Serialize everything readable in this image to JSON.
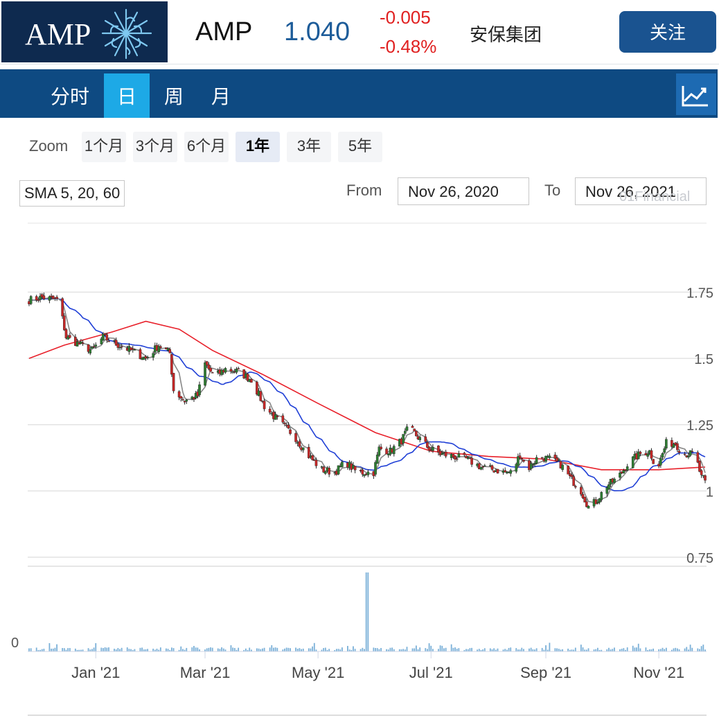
{
  "header": {
    "logo_text": "AMP",
    "ticker": "AMP",
    "price": "1.040",
    "change": "-0.005",
    "change_pct": "-0.48%",
    "company_name": "安保集团",
    "follow_label": "关注",
    "colors": {
      "logo_bg": "#0e2a4f",
      "price": "#1d5c99",
      "down": "#e02020",
      "button": "#1a5390"
    }
  },
  "tabs": [
    {
      "label": "分时",
      "active": false
    },
    {
      "label": "日",
      "active": true
    },
    {
      "label": "周",
      "active": false
    },
    {
      "label": "月",
      "active": false
    }
  ],
  "toolbar": {
    "chart_toggle_icon": "line-chart-icon",
    "zoom_label": "Zoom",
    "zoom_options": [
      {
        "label": "1个月",
        "selected": false
      },
      {
        "label": "3个月",
        "selected": false
      },
      {
        "label": "6个月",
        "selected": false
      },
      {
        "label": "1年",
        "selected": true
      },
      {
        "label": "3年",
        "selected": false
      },
      {
        "label": "5年",
        "selected": false
      }
    ],
    "indicator_label": "SMA 5, 20, 60",
    "from_label": "From",
    "from_value": "Nov 26, 2020",
    "to_label": "To",
    "to_value": "Nov 26, 2021",
    "watermark": "01Financial"
  },
  "chart_data": {
    "type": "candlestick",
    "x_ticks": [
      "Jan '21",
      "Mar '21",
      "May '21",
      "Jul '21",
      "Sep '21",
      "Nov '21"
    ],
    "x_tick_dates": [
      "2021-01-01",
      "2021-03-01",
      "2021-05-01",
      "2021-07-01",
      "2021-09-01",
      "2021-11-01"
    ],
    "x_range": [
      "2020-11-26",
      "2021-11-26"
    ],
    "y_ticks": [
      "1.75",
      "1.5",
      "1.25",
      "1",
      "0.75"
    ],
    "y_tick_values": [
      1.75,
      1.5,
      1.25,
      1.0,
      0.75
    ],
    "ylim": [
      0.75,
      1.78
    ],
    "volume_axis_label": "0",
    "grid": true,
    "price_path": [
      [
        "2020-11-26",
        1.72
      ],
      [
        "2020-12-03",
        1.73
      ],
      [
        "2020-12-12",
        1.72
      ],
      [
        "2020-12-16",
        1.58
      ],
      [
        "2020-12-24",
        1.55
      ],
      [
        "2020-12-30",
        1.53
      ],
      [
        "2021-01-05",
        1.58
      ],
      [
        "2021-01-10",
        1.56
      ],
      [
        "2021-01-20",
        1.53
      ],
      [
        "2021-01-28",
        1.5
      ],
      [
        "2021-02-04",
        1.55
      ],
      [
        "2021-02-10",
        1.52
      ],
      [
        "2021-02-12",
        1.38
      ],
      [
        "2021-02-18",
        1.34
      ],
      [
        "2021-02-25",
        1.36
      ],
      [
        "2021-03-01",
        1.48
      ],
      [
        "2021-03-06",
        1.43
      ],
      [
        "2021-03-12",
        1.46
      ],
      [
        "2021-03-19",
        1.45
      ],
      [
        "2021-03-26",
        1.42
      ],
      [
        "2021-04-02",
        1.32
      ],
      [
        "2021-04-10",
        1.26
      ],
      [
        "2021-04-18",
        1.21
      ],
      [
        "2021-04-25",
        1.14
      ],
      [
        "2021-05-03",
        1.08
      ],
      [
        "2021-05-10",
        1.07
      ],
      [
        "2021-05-16",
        1.11
      ],
      [
        "2021-05-22",
        1.07
      ],
      [
        "2021-05-31",
        1.07
      ],
      [
        "2021-06-03",
        1.16
      ],
      [
        "2021-06-09",
        1.15
      ],
      [
        "2021-06-15",
        1.19
      ],
      [
        "2021-06-19",
        1.24
      ],
      [
        "2021-06-23",
        1.21
      ],
      [
        "2021-06-30",
        1.16
      ],
      [
        "2021-07-06",
        1.14
      ],
      [
        "2021-07-13",
        1.13
      ],
      [
        "2021-07-20",
        1.12
      ],
      [
        "2021-07-28",
        1.09
      ],
      [
        "2021-08-04",
        1.08
      ],
      [
        "2021-08-10",
        1.07
      ],
      [
        "2021-08-14",
        1.07
      ],
      [
        "2021-08-18",
        1.14
      ],
      [
        "2021-08-22",
        1.08
      ],
      [
        "2021-08-28",
        1.13
      ],
      [
        "2021-09-03",
        1.12
      ],
      [
        "2021-09-09",
        1.1
      ],
      [
        "2021-09-14",
        1.05
      ],
      [
        "2021-09-20",
        1.0
      ],
      [
        "2021-09-24",
        0.94
      ],
      [
        "2021-09-28",
        0.96
      ],
      [
        "2021-10-04",
        1.02
      ],
      [
        "2021-10-10",
        1.05
      ],
      [
        "2021-10-16",
        1.11
      ],
      [
        "2021-10-22",
        1.14
      ],
      [
        "2021-10-27",
        1.15
      ],
      [
        "2021-10-31",
        1.08
      ],
      [
        "2021-11-05",
        1.18
      ],
      [
        "2021-11-10",
        1.18
      ],
      [
        "2021-11-14",
        1.14
      ],
      [
        "2021-11-19",
        1.14
      ],
      [
        "2021-11-22",
        1.1
      ],
      [
        "2021-11-24",
        1.05
      ],
      [
        "2021-11-26",
        1.04
      ]
    ],
    "sma60_path": [
      [
        "2020-11-26",
        1.5
      ],
      [
        "2020-12-15",
        1.55
      ],
      [
        "2021-01-10",
        1.6
      ],
      [
        "2021-01-28",
        1.64
      ],
      [
        "2021-02-15",
        1.61
      ],
      [
        "2021-03-05",
        1.53
      ],
      [
        "2021-04-01",
        1.44
      ],
      [
        "2021-05-01",
        1.33
      ],
      [
        "2021-06-01",
        1.22
      ],
      [
        "2021-07-01",
        1.15
      ],
      [
        "2021-08-01",
        1.13
      ],
      [
        "2021-09-01",
        1.12
      ],
      [
        "2021-10-01",
        1.08
      ],
      [
        "2021-11-01",
        1.08
      ],
      [
        "2021-11-26",
        1.09
      ]
    ],
    "volume_spike": {
      "date": "2021-05-28"
    },
    "series": [
      {
        "type": "candlestick",
        "up_color": "#2e7d32",
        "down_color": "#c62828"
      },
      {
        "type": "line",
        "color": "#888888"
      },
      {
        "type": "line",
        "color": "#1f3fd6"
      },
      {
        "type": "line",
        "color": "#e8202a"
      },
      {
        "type": "bar",
        "color": "#7ab0d8"
      }
    ]
  }
}
